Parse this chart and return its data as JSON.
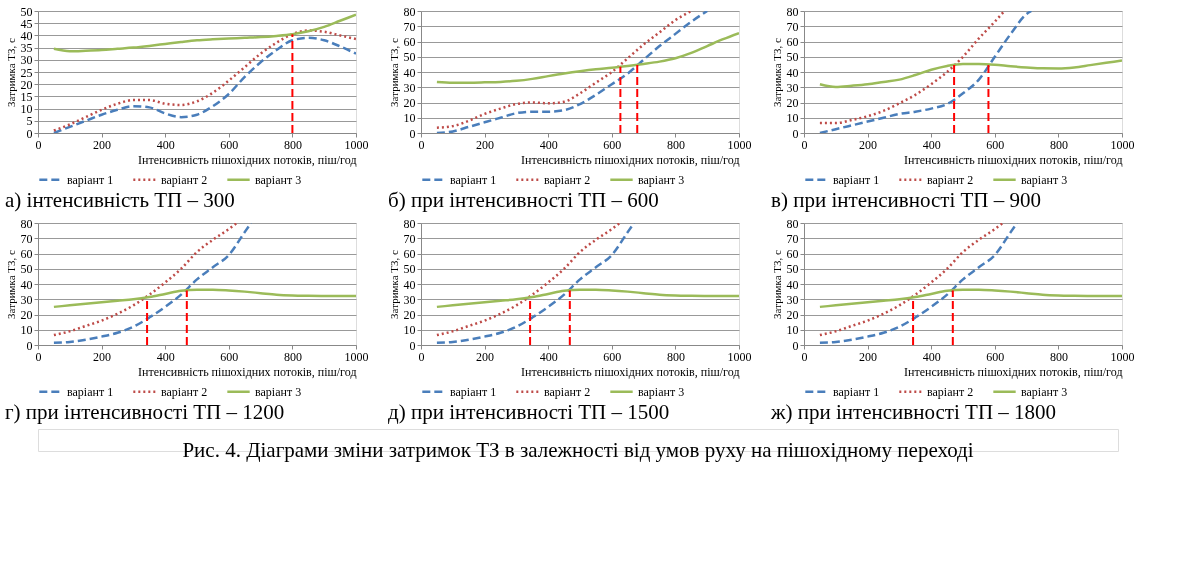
{
  "chart_data": [
    {
      "type": "line",
      "title": "а) інтенсивність ТП – 300",
      "xlabel": "Інтенсивність пішохідних  потоків, піш/год",
      "ylabel": "Затримка ТЗ, с",
      "xlim": [
        0,
        1000
      ],
      "xticks": [
        0,
        200,
        400,
        600,
        800,
        1000
      ],
      "ylim": [
        0,
        50
      ],
      "yticks": [
        0,
        5,
        10,
        15,
        20,
        25,
        30,
        35,
        40,
        45,
        50
      ],
      "grid": "y",
      "legend": "bottom",
      "marker": "none",
      "x": [
        50,
        100,
        150,
        200,
        250,
        300,
        350,
        400,
        450,
        500,
        550,
        600,
        650,
        700,
        750,
        800,
        850,
        900,
        950,
        1000
      ],
      "series": [
        {
          "name": "варіант 1",
          "color": "#4a7ebb",
          "line_style": "dashed",
          "values": [
            0,
            2.5,
            5,
            7.5,
            9.5,
            11,
            10.5,
            8,
            6.5,
            7.5,
            11,
            16,
            23,
            29,
            34,
            38,
            39,
            38,
            35.5,
            32.5
          ]
        },
        {
          "name": "варіант 2",
          "color": "#be4b48",
          "line_style": "dotted",
          "values": [
            1,
            3.5,
            6.5,
            9.5,
            12,
            13.5,
            13.5,
            12,
            11.5,
            13,
            16.5,
            21.5,
            27,
            32.5,
            37,
            40.5,
            42,
            41.5,
            40,
            38.5
          ]
        },
        {
          "name": "варіант 3",
          "color": "#9bbb59",
          "line_style": "solid",
          "values": [
            34.5,
            33.5,
            33.7,
            34,
            34.5,
            35,
            35.7,
            36.5,
            37.3,
            38,
            38.4,
            38.7,
            39,
            39.3,
            39.8,
            40.5,
            41.7,
            43.5,
            46,
            48.5
          ]
        }
      ],
      "ref_lines": [
        {
          "axis": "x",
          "value": 800,
          "color": "#ff0000",
          "line_style": "dashed"
        }
      ]
    },
    {
      "type": "line",
      "title": "б) при інтенсивності ТП – 600",
      "xlabel": "Інтенсивність пішохідних  потоків, піш/год",
      "ylabel": "Затримка ТЗ, с",
      "xlim": [
        0,
        1000
      ],
      "xticks": [
        0,
        200,
        400,
        600,
        800,
        1000
      ],
      "ylim": [
        0,
        80
      ],
      "yticks": [
        0,
        10,
        20,
        30,
        40,
        50,
        60,
        70,
        80
      ],
      "grid": "y",
      "legend": "bottom",
      "marker": "none",
      "x": [
        50,
        100,
        150,
        200,
        250,
        300,
        350,
        400,
        450,
        500,
        550,
        600,
        650,
        700,
        750,
        800,
        850,
        900,
        950,
        1000
      ],
      "series": [
        {
          "name": "варіант 1",
          "color": "#4a7ebb",
          "line_style": "dashed",
          "x": [
            50,
            100,
            150,
            200,
            250,
            300,
            350,
            400,
            450,
            500,
            550,
            600,
            650,
            700,
            750,
            800,
            850,
            900
          ],
          "values": [
            0,
            1,
            4,
            7,
            10,
            13,
            14,
            14,
            15,
            19,
            25,
            32,
            39,
            48,
            57,
            65,
            73,
            80
          ]
        },
        {
          "name": "варіант 2",
          "color": "#be4b48",
          "line_style": "dotted",
          "x": [
            50,
            100,
            150,
            200,
            250,
            300,
            350,
            400,
            450,
            500,
            550,
            600,
            650,
            700,
            750,
            800,
            850
          ],
          "values": [
            3.5,
            4.5,
            8,
            12.5,
            16,
            19,
            20,
            19.5,
            20.5,
            26,
            33,
            40,
            49,
            58,
            66,
            74,
            80
          ]
        },
        {
          "name": "варіант 3",
          "color": "#9bbb59",
          "line_style": "solid",
          "values": [
            33.5,
            33,
            33,
            33.2,
            33.5,
            34.2,
            35.5,
            37.3,
            39,
            40.5,
            41.8,
            42.8,
            44,
            45.3,
            46.8,
            49,
            52.5,
            57,
            61.5,
            65.5
          ]
        }
      ],
      "ref_lines": [
        {
          "axis": "x",
          "value": 627,
          "color": "#ff0000",
          "line_style": "dashed"
        },
        {
          "axis": "x",
          "value": 680,
          "color": "#ff0000",
          "line_style": "dashed"
        }
      ]
    },
    {
      "type": "line",
      "title": "в) при інтенсивності ТП – 900",
      "xlabel": "Інтенсивність пішохідних  потоків, піш/год",
      "ylabel": "Затримка ТЗ, с",
      "xlim": [
        0,
        1000
      ],
      "xticks": [
        0,
        200,
        400,
        600,
        800,
        1000
      ],
      "ylim": [
        0,
        80
      ],
      "yticks": [
        0,
        10,
        20,
        30,
        40,
        50,
        60,
        70,
        80
      ],
      "grid": "y",
      "legend": "bottom",
      "marker": "none",
      "x": [
        50,
        100,
        150,
        200,
        250,
        300,
        350,
        400,
        450,
        500,
        550,
        600,
        650,
        700,
        750,
        800,
        850,
        900,
        950,
        1000
      ],
      "series": [
        {
          "name": "варіант 1",
          "color": "#4a7ebb",
          "line_style": "dashed",
          "x": [
            50,
            100,
            150,
            200,
            250,
            300,
            350,
            400,
            450,
            500,
            550,
            600,
            650,
            700,
            715
          ],
          "values": [
            0,
            2.5,
            5,
            7.5,
            10,
            12.5,
            14,
            16,
            19,
            26,
            35,
            50,
            65,
            78,
            80
          ]
        },
        {
          "name": "варіант 2",
          "color": "#be4b48",
          "line_style": "dotted",
          "x": [
            50,
            100,
            150,
            200,
            250,
            300,
            350,
            400,
            450,
            500,
            550,
            600,
            630
          ],
          "values": [
            6.5,
            6.5,
            8.5,
            11,
            14.5,
            19.5,
            25,
            32,
            40,
            50,
            62,
            73,
            80
          ]
        },
        {
          "name": "варіант 3",
          "color": "#9bbb59",
          "line_style": "solid",
          "values": [
            32,
            30.2,
            31,
            32,
            33.5,
            35,
            38,
            41.5,
            44,
            45.3,
            45.3,
            44.8,
            43.8,
            43,
            42.4,
            42.3,
            43,
            44.5,
            46,
            47.5
          ]
        }
      ],
      "ref_lines": [
        {
          "axis": "x",
          "value": 472,
          "color": "#ff0000",
          "line_style": "dashed"
        },
        {
          "axis": "x",
          "value": 580,
          "color": "#ff0000",
          "line_style": "dashed"
        }
      ]
    },
    {
      "type": "line",
      "title": "г) при інтенсивності ТП – 1200",
      "xlabel": "Інтенсивність пішохідних  потоків, піш/год",
      "ylabel": "Затримка ТЗ, с",
      "xlim": [
        0,
        1000
      ],
      "xticks": [
        0,
        200,
        400,
        600,
        800,
        1000
      ],
      "ylim": [
        0,
        80
      ],
      "yticks": [
        0,
        10,
        20,
        30,
        40,
        50,
        60,
        70,
        80
      ],
      "grid": "y",
      "legend": "bottom",
      "marker": "none",
      "x": [
        50,
        100,
        150,
        200,
        250,
        300,
        350,
        400,
        450,
        500,
        550,
        600,
        650,
        700,
        750,
        800,
        850,
        900,
        950,
        1000
      ],
      "series": [
        {
          "name": "варіант 1",
          "color": "#4a7ebb",
          "line_style": "dashed",
          "x": [
            50,
            100,
            150,
            200,
            250,
            300,
            350,
            400,
            450,
            500,
            550,
            600,
            650,
            670
          ],
          "values": [
            1.5,
            2,
            3.5,
            5.5,
            8,
            12,
            18,
            25,
            33,
            43,
            51,
            59,
            74,
            80
          ]
        },
        {
          "name": "варіант 2",
          "color": "#be4b48",
          "line_style": "dotted",
          "x": [
            50,
            100,
            150,
            200,
            250,
            300,
            350,
            400,
            450,
            500,
            550,
            600,
            625
          ],
          "values": [
            6.5,
            9,
            12.5,
            16,
            20.5,
            26,
            33,
            41,
            50,
            61,
            69,
            76,
            80
          ]
        },
        {
          "name": "варіант 3",
          "color": "#9bbb59",
          "line_style": "solid",
          "values": [
            25,
            26,
            27,
            28,
            29,
            30,
            31.5,
            33.5,
            35.5,
            36.3,
            36.3,
            35.8,
            35,
            34,
            33,
            32.5,
            32.3,
            32.2,
            32.2,
            32.2
          ]
        }
      ],
      "ref_lines": [
        {
          "axis": "x",
          "value": 343,
          "color": "#ff0000",
          "line_style": "dashed"
        },
        {
          "axis": "x",
          "value": 468,
          "color": "#ff0000",
          "line_style": "dashed"
        }
      ]
    },
    {
      "type": "line",
      "title": "д) при інтенсивності ТП – 1500",
      "xlabel": "Інтенсивність пішохідних  потоків, піш/год",
      "ylabel": "Затримка ТЗ, с",
      "xlim": [
        0,
        1000
      ],
      "xticks": [
        0,
        200,
        400,
        600,
        800,
        1000
      ],
      "ylim": [
        0,
        80
      ],
      "yticks": [
        0,
        10,
        20,
        30,
        40,
        50,
        60,
        70,
        80
      ],
      "grid": "y",
      "legend": "bottom",
      "marker": "none",
      "x": [
        50,
        100,
        150,
        200,
        250,
        300,
        350,
        400,
        450,
        500,
        550,
        600,
        650,
        700,
        750,
        800,
        850,
        900,
        950,
        1000
      ],
      "series": [
        {
          "name": "варіант 1",
          "color": "#4a7ebb",
          "line_style": "dashed",
          "x": [
            50,
            100,
            150,
            200,
            250,
            300,
            350,
            400,
            450,
            500,
            550,
            600,
            650,
            670
          ],
          "values": [
            1.5,
            2,
            3.5,
            5.5,
            8,
            12,
            18,
            25,
            33,
            43,
            51,
            59,
            74,
            80
          ]
        },
        {
          "name": "варіант 2",
          "color": "#be4b48",
          "line_style": "dotted",
          "x": [
            50,
            100,
            150,
            200,
            250,
            300,
            350,
            400,
            450,
            500,
            550,
            600,
            625
          ],
          "values": [
            6.5,
            9,
            12.5,
            16,
            20.5,
            26,
            33,
            41,
            50,
            61,
            69,
            76,
            80
          ]
        },
        {
          "name": "варіант 3",
          "color": "#9bbb59",
          "line_style": "solid",
          "values": [
            25,
            26,
            27,
            28,
            29,
            30,
            31.5,
            33.5,
            35.5,
            36.3,
            36.3,
            35.8,
            35,
            34,
            33,
            32.5,
            32.3,
            32.2,
            32.2,
            32.2
          ]
        }
      ],
      "ref_lines": [
        {
          "axis": "x",
          "value": 343,
          "color": "#ff0000",
          "line_style": "dashed"
        },
        {
          "axis": "x",
          "value": 468,
          "color": "#ff0000",
          "line_style": "dashed"
        }
      ]
    },
    {
      "type": "line",
      "title": "ж) при інтенсивності ТП – 1800",
      "xlabel": "Інтенсивність пішохідних  потоків, піш/год",
      "ylabel": "Затримка ТЗ, с",
      "xlim": [
        0,
        1000
      ],
      "xticks": [
        0,
        200,
        400,
        600,
        800,
        1000
      ],
      "ylim": [
        0,
        80
      ],
      "yticks": [
        0,
        10,
        20,
        30,
        40,
        50,
        60,
        70,
        80
      ],
      "grid": "y",
      "legend": "bottom",
      "marker": "none",
      "x": [
        50,
        100,
        150,
        200,
        250,
        300,
        350,
        400,
        450,
        500,
        550,
        600,
        650,
        700,
        750,
        800,
        850,
        900,
        950,
        1000
      ],
      "series": [
        {
          "name": "варіант 1",
          "color": "#4a7ebb",
          "line_style": "dashed",
          "x": [
            50,
            100,
            150,
            200,
            250,
            300,
            350,
            400,
            450,
            500,
            550,
            600,
            650,
            670
          ],
          "values": [
            1.5,
            2,
            3.5,
            5.5,
            8,
            12,
            18,
            25,
            33,
            43,
            51,
            59,
            74,
            80
          ]
        },
        {
          "name": "варіант 2",
          "color": "#be4b48",
          "line_style": "dotted",
          "x": [
            50,
            100,
            150,
            200,
            250,
            300,
            350,
            400,
            450,
            500,
            550,
            600,
            625
          ],
          "values": [
            6.5,
            9,
            12.5,
            16,
            20.5,
            26,
            33,
            41,
            50,
            61,
            69,
            76,
            80
          ]
        },
        {
          "name": "варіант 3",
          "color": "#9bbb59",
          "line_style": "solid",
          "values": [
            25,
            26,
            27,
            28,
            29,
            30,
            31.5,
            33.5,
            35.5,
            36.3,
            36.3,
            35.8,
            35,
            34,
            33,
            32.5,
            32.3,
            32.2,
            32.2,
            32.2
          ]
        }
      ],
      "ref_lines": [
        {
          "axis": "x",
          "value": 343,
          "color": "#ff0000",
          "line_style": "dashed"
        },
        {
          "axis": "x",
          "value": 468,
          "color": "#ff0000",
          "line_style": "dashed"
        }
      ],
      "annotations": [
        "Рис. 4. Діаграми зміни затримок ТЗ в залежності від умов руху на пішохідному переході"
      ]
    }
  ]
}
